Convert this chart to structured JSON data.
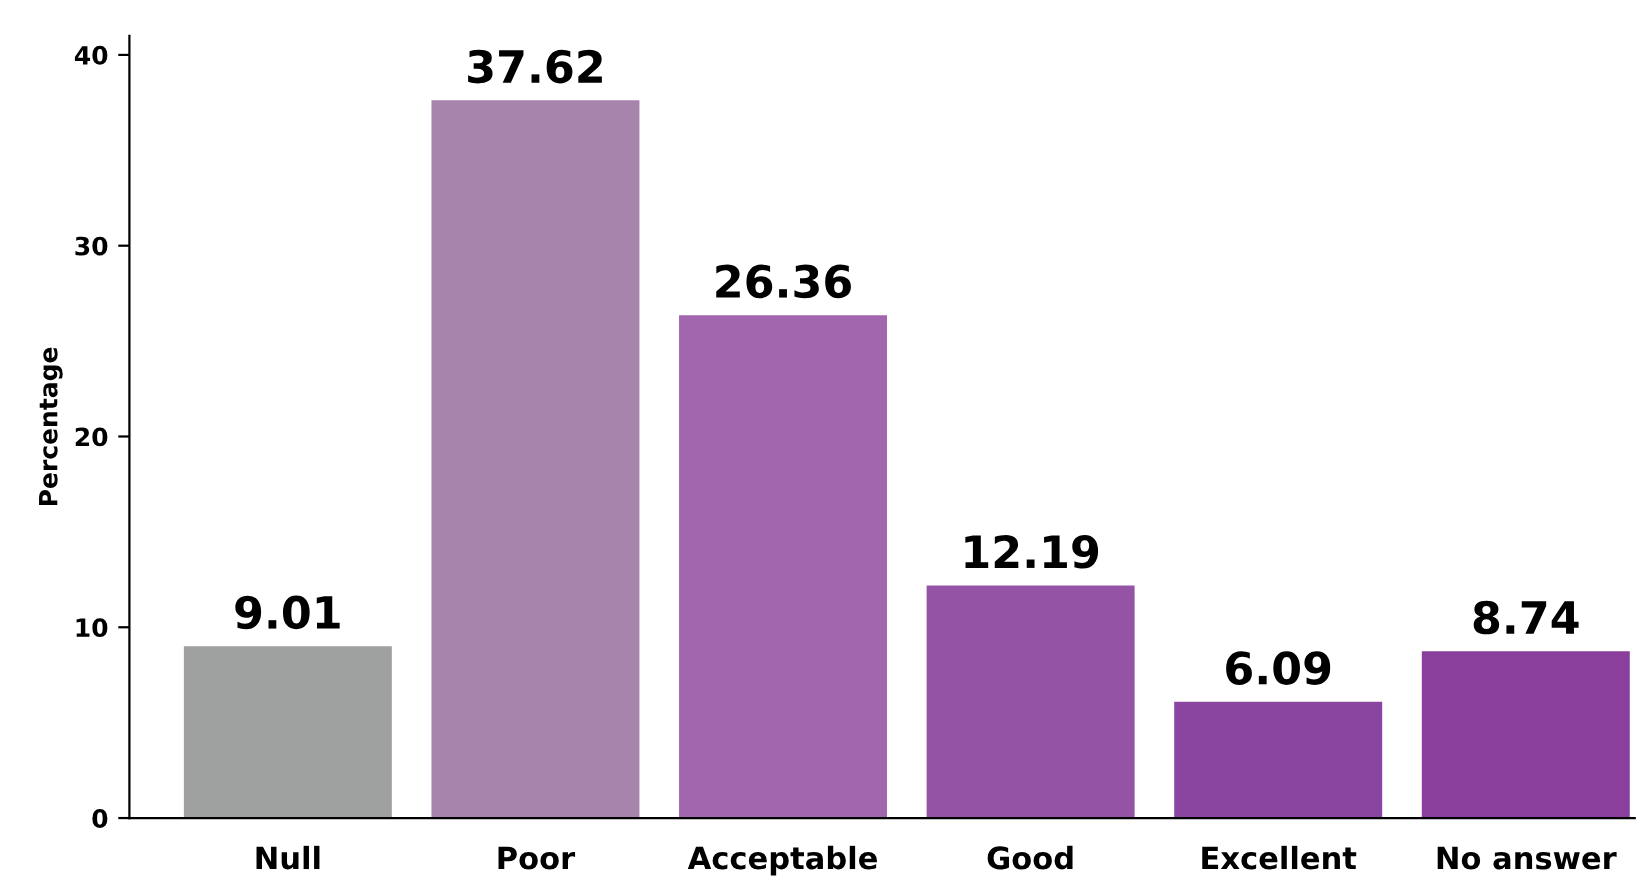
{
  "chart_data": {
    "type": "bar",
    "ylabel": "Percentage",
    "categories": [
      "Null",
      "Poor",
      "Acceptable",
      "Good",
      "Excellent",
      "No answer"
    ],
    "values": [
      9.01,
      37.62,
      26.36,
      12.19,
      6.09,
      8.74
    ],
    "colors": [
      "#9fa0a0",
      "#a784ab",
      "#a266ae",
      "#9453a5",
      "#8a45a0",
      "#893f9b"
    ],
    "ylim": [
      0,
      41
    ],
    "yticks": [
      0,
      10,
      20,
      30,
      40
    ],
    "grid": false,
    "legend": false,
    "data_labels": true
  }
}
